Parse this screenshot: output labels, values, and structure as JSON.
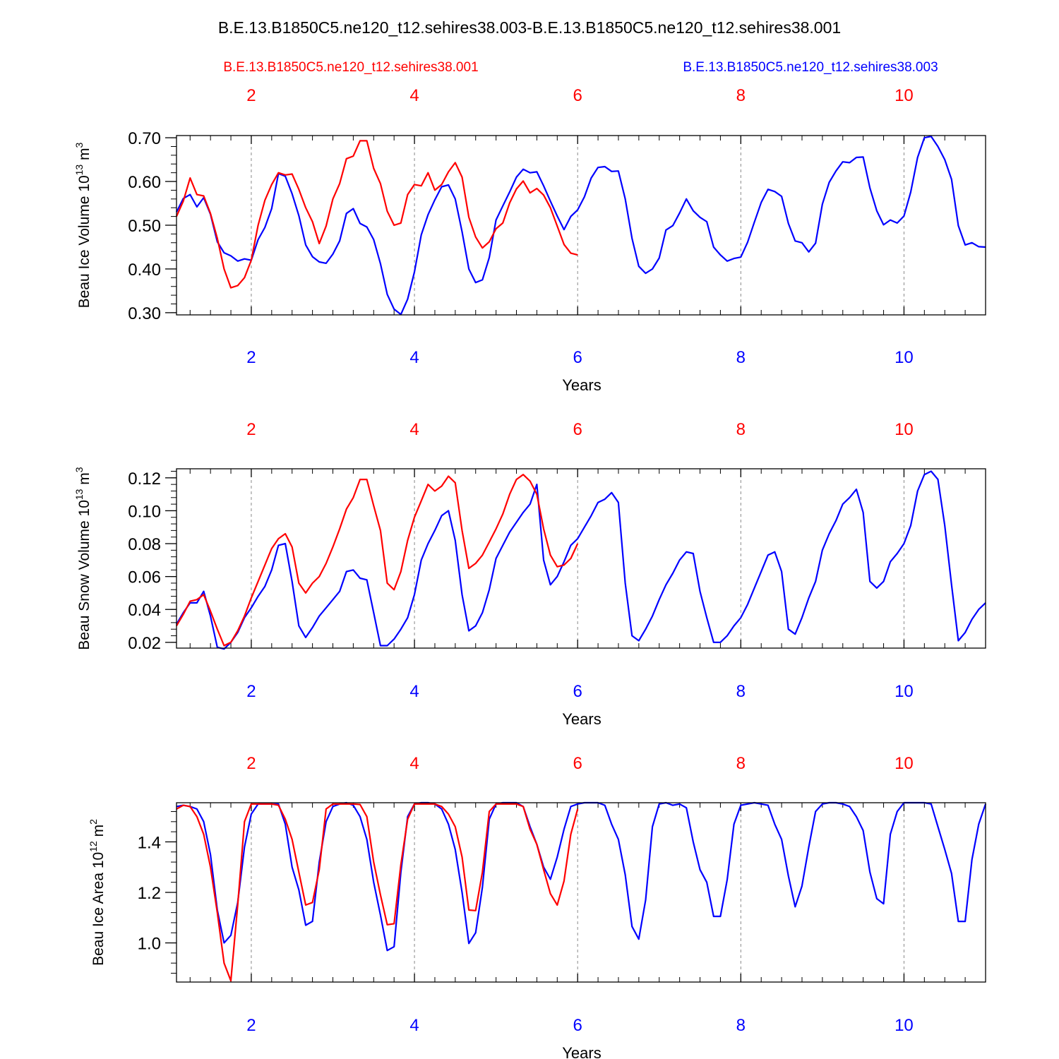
{
  "title": "B.E.13.B1850C5.ne120_t12.sehires38.003-B.E.13.B1850C5.ne120_t12.sehires38.001",
  "colors": {
    "red": "#ff0000",
    "blue": "#0000ff",
    "grid": "#888888"
  },
  "legend": {
    "red": "B.E.13.B1850C5.ne120_t12.sehires38.001",
    "blue": "B.E.13.B1850C5.ne120_t12.sehires38.003"
  },
  "chart_data": [
    {
      "type": "line",
      "id": "ice-volume",
      "ylabel": "Beau Ice Volume",
      "yunit": "10",
      "yexp": "13",
      "yunit_tail": "m",
      "yunit_tail_exp": "3",
      "xlabel": "Years",
      "xlim": [
        1.0833,
        11.0
      ],
      "ylim": [
        0.295,
        0.705
      ],
      "yticks": [
        0.3,
        0.4,
        0.5,
        0.6,
        0.7
      ],
      "ytick_labels": [
        "0.30",
        "0.40",
        "0.50",
        "0.60",
        "0.70"
      ],
      "yminor_step": 0.02,
      "xticks": [
        2,
        4,
        6,
        8,
        10
      ],
      "xtick_labels": [
        "2",
        "4",
        "6",
        "8",
        "10"
      ],
      "grid_x": [
        2,
        4,
        6,
        8,
        10
      ],
      "series": [
        {
          "name": "B.E.13.B1850C5.ne120_t12.sehires38.001",
          "color": "red",
          "x_start": 1.0833,
          "x_step": 0.08333,
          "values": [
            0.52,
            0.555,
            0.608,
            0.57,
            0.567,
            0.527,
            0.47,
            0.4,
            0.357,
            0.362,
            0.38,
            0.42,
            0.5,
            0.557,
            0.593,
            0.62,
            0.615,
            0.617,
            0.582,
            0.54,
            0.508,
            0.458,
            0.498,
            0.56,
            0.595,
            0.652,
            0.658,
            0.693,
            0.693,
            0.63,
            0.595,
            0.532,
            0.5,
            0.505,
            0.57,
            0.593,
            0.59,
            0.62,
            0.58,
            0.593,
            0.622,
            0.643,
            0.61,
            0.518,
            0.473,
            0.448,
            0.462,
            0.492,
            0.505,
            0.551,
            0.583,
            0.601,
            0.574,
            0.584,
            0.569,
            0.54,
            0.498,
            0.456,
            0.436,
            0.432
          ]
        },
        {
          "name": "B.E.13.B1850C5.ne120_t12.sehires38.003",
          "color": "blue",
          "x_start": 1.0833,
          "x_step": 0.08333,
          "values": [
            0.53,
            0.561,
            0.57,
            0.542,
            0.563,
            0.525,
            0.462,
            0.437,
            0.43,
            0.418,
            0.423,
            0.42,
            0.467,
            0.495,
            0.538,
            0.618,
            0.612,
            0.572,
            0.522,
            0.455,
            0.428,
            0.416,
            0.413,
            0.434,
            0.464,
            0.527,
            0.538,
            0.504,
            0.496,
            0.467,
            0.412,
            0.342,
            0.308,
            0.296,
            0.331,
            0.393,
            0.478,
            0.524,
            0.558,
            0.588,
            0.592,
            0.56,
            0.485,
            0.4,
            0.369,
            0.375,
            0.426,
            0.512,
            0.544,
            0.576,
            0.61,
            0.628,
            0.62,
            0.622,
            0.59,
            0.555,
            0.521,
            0.49,
            0.52,
            0.535,
            0.565,
            0.608,
            0.632,
            0.634,
            0.623,
            0.624,
            0.56,
            0.47,
            0.406,
            0.39,
            0.4,
            0.425,
            0.489,
            0.499,
            0.528,
            0.56,
            0.533,
            0.518,
            0.508,
            0.45,
            0.432,
            0.418,
            0.424,
            0.427,
            0.461,
            0.507,
            0.552,
            0.582,
            0.577,
            0.566,
            0.504,
            0.464,
            0.46,
            0.439,
            0.459,
            0.548,
            0.598,
            0.624,
            0.645,
            0.643,
            0.655,
            0.656,
            0.585,
            0.533,
            0.501,
            0.512,
            0.505,
            0.521,
            0.576,
            0.655,
            0.7,
            0.703,
            0.68,
            0.65,
            0.605,
            0.499,
            0.455,
            0.46,
            0.451,
            0.45
          ]
        }
      ]
    },
    {
      "type": "line",
      "id": "snow-volume",
      "ylabel": "Beau Snow Volume",
      "yunit": "10",
      "yexp": "13",
      "yunit_tail": "m",
      "yunit_tail_exp": "3",
      "xlabel": "Years",
      "xlim": [
        1.0833,
        11.0
      ],
      "ylim": [
        0.0165,
        0.1255
      ],
      "yticks": [
        0.02,
        0.04,
        0.06,
        0.08,
        0.1,
        0.12
      ],
      "ytick_labels": [
        "0.02",
        "0.04",
        "0.06",
        "0.08",
        "0.10",
        "0.12"
      ],
      "yminor_step": 0.004,
      "xticks": [
        2,
        4,
        6,
        8,
        10
      ],
      "xtick_labels": [
        "2",
        "4",
        "6",
        "8",
        "10"
      ],
      "grid_x": [
        2,
        4,
        6,
        8,
        10
      ],
      "series": [
        {
          "name": "B.E.13.B1850C5.ne120_t12.sehires38.001",
          "color": "red",
          "x_start": 1.0833,
          "x_step": 0.08333,
          "values": [
            0.03,
            0.037,
            0.045,
            0.046,
            0.049,
            0.039,
            0.028,
            0.018,
            0.02,
            0.027,
            0.036,
            0.047,
            0.057,
            0.067,
            0.077,
            0.083,
            0.086,
            0.078,
            0.056,
            0.05,
            0.056,
            0.06,
            0.068,
            0.078,
            0.089,
            0.101,
            0.108,
            0.119,
            0.119,
            0.103,
            0.088,
            0.056,
            0.052,
            0.063,
            0.082,
            0.096,
            0.106,
            0.116,
            0.112,
            0.115,
            0.121,
            0.117,
            0.088,
            0.065,
            0.068,
            0.073,
            0.081,
            0.089,
            0.098,
            0.11,
            0.119,
            0.122,
            0.118,
            0.11,
            0.089,
            0.073,
            0.066,
            0.067,
            0.071,
            0.08
          ]
        },
        {
          "name": "B.E.13.B1850C5.ne120_t12.sehires38.003",
          "color": "blue",
          "x_start": 1.0833,
          "x_step": 0.08333,
          "values": [
            0.031,
            0.038,
            0.044,
            0.044,
            0.051,
            0.036,
            0.017,
            0.016,
            0.02,
            0.026,
            0.035,
            0.041,
            0.048,
            0.054,
            0.064,
            0.079,
            0.08,
            0.057,
            0.03,
            0.023,
            0.029,
            0.036,
            0.041,
            0.046,
            0.051,
            0.063,
            0.064,
            0.059,
            0.058,
            0.038,
            0.018,
            0.018,
            0.022,
            0.028,
            0.035,
            0.049,
            0.07,
            0.08,
            0.088,
            0.097,
            0.1,
            0.082,
            0.049,
            0.027,
            0.03,
            0.038,
            0.052,
            0.071,
            0.079,
            0.087,
            0.093,
            0.099,
            0.104,
            0.116,
            0.07,
            0.055,
            0.06,
            0.069,
            0.079,
            0.083,
            0.09,
            0.097,
            0.105,
            0.107,
            0.111,
            0.105,
            0.056,
            0.024,
            0.021,
            0.028,
            0.036,
            0.046,
            0.055,
            0.062,
            0.07,
            0.075,
            0.074,
            0.051,
            0.035,
            0.02,
            0.02,
            0.024,
            0.03,
            0.035,
            0.043,
            0.053,
            0.063,
            0.073,
            0.075,
            0.063,
            0.028,
            0.025,
            0.035,
            0.047,
            0.057,
            0.076,
            0.086,
            0.094,
            0.104,
            0.108,
            0.113,
            0.099,
            0.057,
            0.053,
            0.057,
            0.069,
            0.074,
            0.08,
            0.091,
            0.112,
            0.122,
            0.124,
            0.119,
            0.091,
            0.055,
            0.021,
            0.026,
            0.034,
            0.04,
            0.044
          ]
        }
      ]
    },
    {
      "type": "line",
      "id": "ice-area",
      "ylabel": "Beau Ice Area",
      "yunit": "10",
      "yexp": "12",
      "yunit_tail": "m",
      "yunit_tail_exp": "2",
      "xlabel": "Years",
      "xlim": [
        1.0833,
        11.0
      ],
      "ylim": [
        0.845,
        1.555
      ],
      "yticks": [
        1.0,
        1.2,
        1.4
      ],
      "ytick_labels": [
        "1.0",
        "1.2",
        "1.4"
      ],
      "yminor_step": 0.04,
      "xticks": [
        2,
        4,
        6,
        8,
        10
      ],
      "xtick_labels": [
        "2",
        "4",
        "6",
        "8",
        "10"
      ],
      "grid_x": [
        2,
        4,
        6,
        8,
        10
      ],
      "series": [
        {
          "name": "B.E.13.B1850C5.ne120_t12.sehires38.001",
          "color": "red",
          "x_start": 1.0833,
          "x_step": 0.08333,
          "values": [
            1.53,
            1.545,
            1.54,
            1.5,
            1.43,
            1.3,
            1.12,
            0.92,
            0.85,
            1.15,
            1.48,
            1.55,
            1.55,
            1.55,
            1.55,
            1.545,
            1.49,
            1.41,
            1.28,
            1.15,
            1.16,
            1.29,
            1.53,
            1.55,
            1.55,
            1.55,
            1.55,
            1.548,
            1.5,
            1.32,
            1.19,
            1.072,
            1.076,
            1.31,
            1.49,
            1.55,
            1.55,
            1.55,
            1.55,
            1.54,
            1.51,
            1.46,
            1.34,
            1.13,
            1.128,
            1.28,
            1.52,
            1.55,
            1.55,
            1.55,
            1.55,
            1.54,
            1.45,
            1.39,
            1.29,
            1.195,
            1.15,
            1.245,
            1.43,
            1.53
          ]
        },
        {
          "name": "B.E.13.B1850C5.ne120_t12.sehires38.003",
          "color": "blue",
          "x_start": 1.0833,
          "x_step": 0.08333,
          "values": [
            1.54,
            1.545,
            1.54,
            1.53,
            1.48,
            1.35,
            1.13,
            1.0,
            1.03,
            1.16,
            1.38,
            1.51,
            1.55,
            1.55,
            1.55,
            1.55,
            1.47,
            1.3,
            1.21,
            1.07,
            1.085,
            1.32,
            1.48,
            1.54,
            1.55,
            1.555,
            1.545,
            1.5,
            1.41,
            1.24,
            1.11,
            0.97,
            0.985,
            1.28,
            1.5,
            1.55,
            1.555,
            1.555,
            1.55,
            1.53,
            1.47,
            1.37,
            1.2,
            0.998,
            1.04,
            1.22,
            1.49,
            1.55,
            1.555,
            1.555,
            1.555,
            1.54,
            1.46,
            1.39,
            1.3,
            1.252,
            1.34,
            1.45,
            1.54,
            1.55,
            1.555,
            1.555,
            1.555,
            1.545,
            1.47,
            1.41,
            1.27,
            1.065,
            1.015,
            1.17,
            1.46,
            1.55,
            1.555,
            1.545,
            1.55,
            1.535,
            1.4,
            1.29,
            1.24,
            1.105,
            1.105,
            1.25,
            1.47,
            1.545,
            1.55,
            1.555,
            1.55,
            1.545,
            1.47,
            1.41,
            1.265,
            1.143,
            1.225,
            1.38,
            1.52,
            1.55,
            1.555,
            1.555,
            1.55,
            1.54,
            1.5,
            1.445,
            1.28,
            1.175,
            1.155,
            1.43,
            1.52,
            1.555,
            1.555,
            1.555,
            1.555,
            1.55,
            1.46,
            1.37,
            1.275,
            1.085,
            1.085,
            1.33,
            1.47,
            1.55
          ]
        }
      ]
    }
  ]
}
